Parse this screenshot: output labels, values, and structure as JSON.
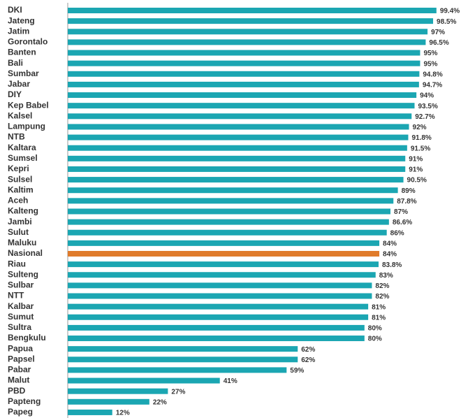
{
  "chart_data": {
    "type": "hbar",
    "categories": [
      "DKI",
      "Jateng",
      "Jatim",
      "Gorontalo",
      "Banten",
      "Bali",
      "Sumbar",
      "Jabar",
      "DIY",
      "Kep Babel",
      "Kalsel",
      "Lampung",
      "NTB",
      "Kaltara",
      "Sumsel",
      "Kepri",
      "Sulsel",
      "Kaltim",
      "Aceh",
      "Kalteng",
      "Jambi",
      "Sulut",
      "Maluku",
      "Nasional",
      "Riau",
      "Sulteng",
      "Sulbar",
      "NTT",
      "Kalbar",
      "Sumut",
      "Sultra",
      "Bengkulu",
      "Papua",
      "Papsel",
      "Pabar",
      "Malut",
      "PBD",
      "Papteng",
      "Papeg"
    ],
    "values": [
      99.4,
      98.5,
      97,
      96.5,
      95,
      95,
      94.8,
      94.7,
      94,
      93.5,
      92.7,
      92,
      91.8,
      91.5,
      91,
      91,
      90.5,
      89,
      87.8,
      87,
      86.6,
      86,
      84,
      84,
      83.8,
      83,
      82,
      82,
      81,
      81,
      80,
      80,
      62,
      62,
      59,
      41,
      27,
      22,
      12
    ],
    "value_labels": [
      "99.4%",
      "98.5%",
      "97%",
      "96.5%",
      "95%",
      "95%",
      "94.8%",
      "94.7%",
      "94%",
      "93.5%",
      "92.7%",
      "92%",
      "91.8%",
      "91.5%",
      "91%",
      "91%",
      "90.5%",
      "89%",
      "87.8%",
      "87%",
      "86.6%",
      "86%",
      "84%",
      "84%",
      "83.8%",
      "83%",
      "82%",
      "82%",
      "81%",
      "81%",
      "80%",
      "80%",
      "62%",
      "62%",
      "59%",
      "41%",
      "27%",
      "22%",
      "12%"
    ],
    "colors": [
      "#1ba6b2",
      "#1ba6b2",
      "#1ba6b2",
      "#1ba6b2",
      "#1ba6b2",
      "#1ba6b2",
      "#1ba6b2",
      "#1ba6b2",
      "#1ba6b2",
      "#1ba6b2",
      "#1ba6b2",
      "#1ba6b2",
      "#1ba6b2",
      "#1ba6b2",
      "#1ba6b2",
      "#1ba6b2",
      "#1ba6b2",
      "#1ba6b2",
      "#1ba6b2",
      "#1ba6b2",
      "#1ba6b2",
      "#1ba6b2",
      "#1ba6b2",
      "#e07b2b",
      "#1ba6b2",
      "#1ba6b2",
      "#1ba6b2",
      "#1ba6b2",
      "#1ba6b2",
      "#1ba6b2",
      "#1ba6b2",
      "#1ba6b2",
      "#1ba6b2",
      "#1ba6b2",
      "#1ba6b2",
      "#1ba6b2",
      "#1ba6b2",
      "#1ba6b2",
      "#1ba6b2"
    ],
    "xlim": [
      0,
      100
    ]
  }
}
